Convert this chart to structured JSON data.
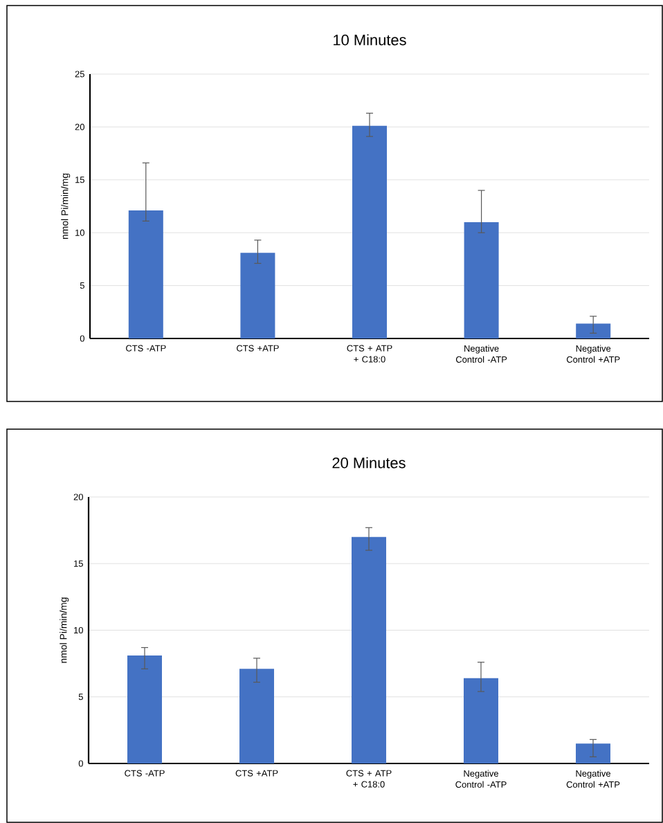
{
  "chart_data": [
    {
      "type": "bar",
      "title": "10 Minutes",
      "ylabel": "nmol Pi/min/mg",
      "categories": [
        "CTS -ATP",
        "CTS +ATP",
        "CTS + ATP + C18:0",
        "Negative Control -ATP",
        "Negative Control +ATP"
      ],
      "values": [
        12.1,
        8.1,
        20.1,
        11.0,
        1.4
      ],
      "color": "#4472c4",
      "errors": [
        [
          11.1,
          16.6
        ],
        [
          7.1,
          9.3
        ],
        [
          19.1,
          21.3
        ],
        [
          10.0,
          14.0
        ],
        [
          0.5,
          2.1
        ]
      ],
      "ylim": [
        0,
        25
      ],
      "yticks": [
        0,
        5,
        10,
        15,
        20,
        25
      ],
      "grid": "y"
    },
    {
      "type": "bar",
      "title": "20 Minutes",
      "ylabel": "nmol Pi/min/mg",
      "categories": [
        "CTS -ATP",
        "CTS +ATP",
        "CTS + ATP + C18:0",
        "Negative Control -ATP",
        "Negative Control +ATP"
      ],
      "values": [
        8.1,
        7.1,
        17.0,
        6.4,
        1.5
      ],
      "color": "#4472c4",
      "errors": [
        [
          7.1,
          8.7
        ],
        [
          6.1,
          7.9
        ],
        [
          16.0,
          17.7
        ],
        [
          5.4,
          7.6
        ],
        [
          0.5,
          1.8
        ]
      ],
      "ylim": [
        0,
        20
      ],
      "yticks": [
        0,
        5,
        10,
        15,
        20
      ],
      "grid": "y"
    }
  ]
}
